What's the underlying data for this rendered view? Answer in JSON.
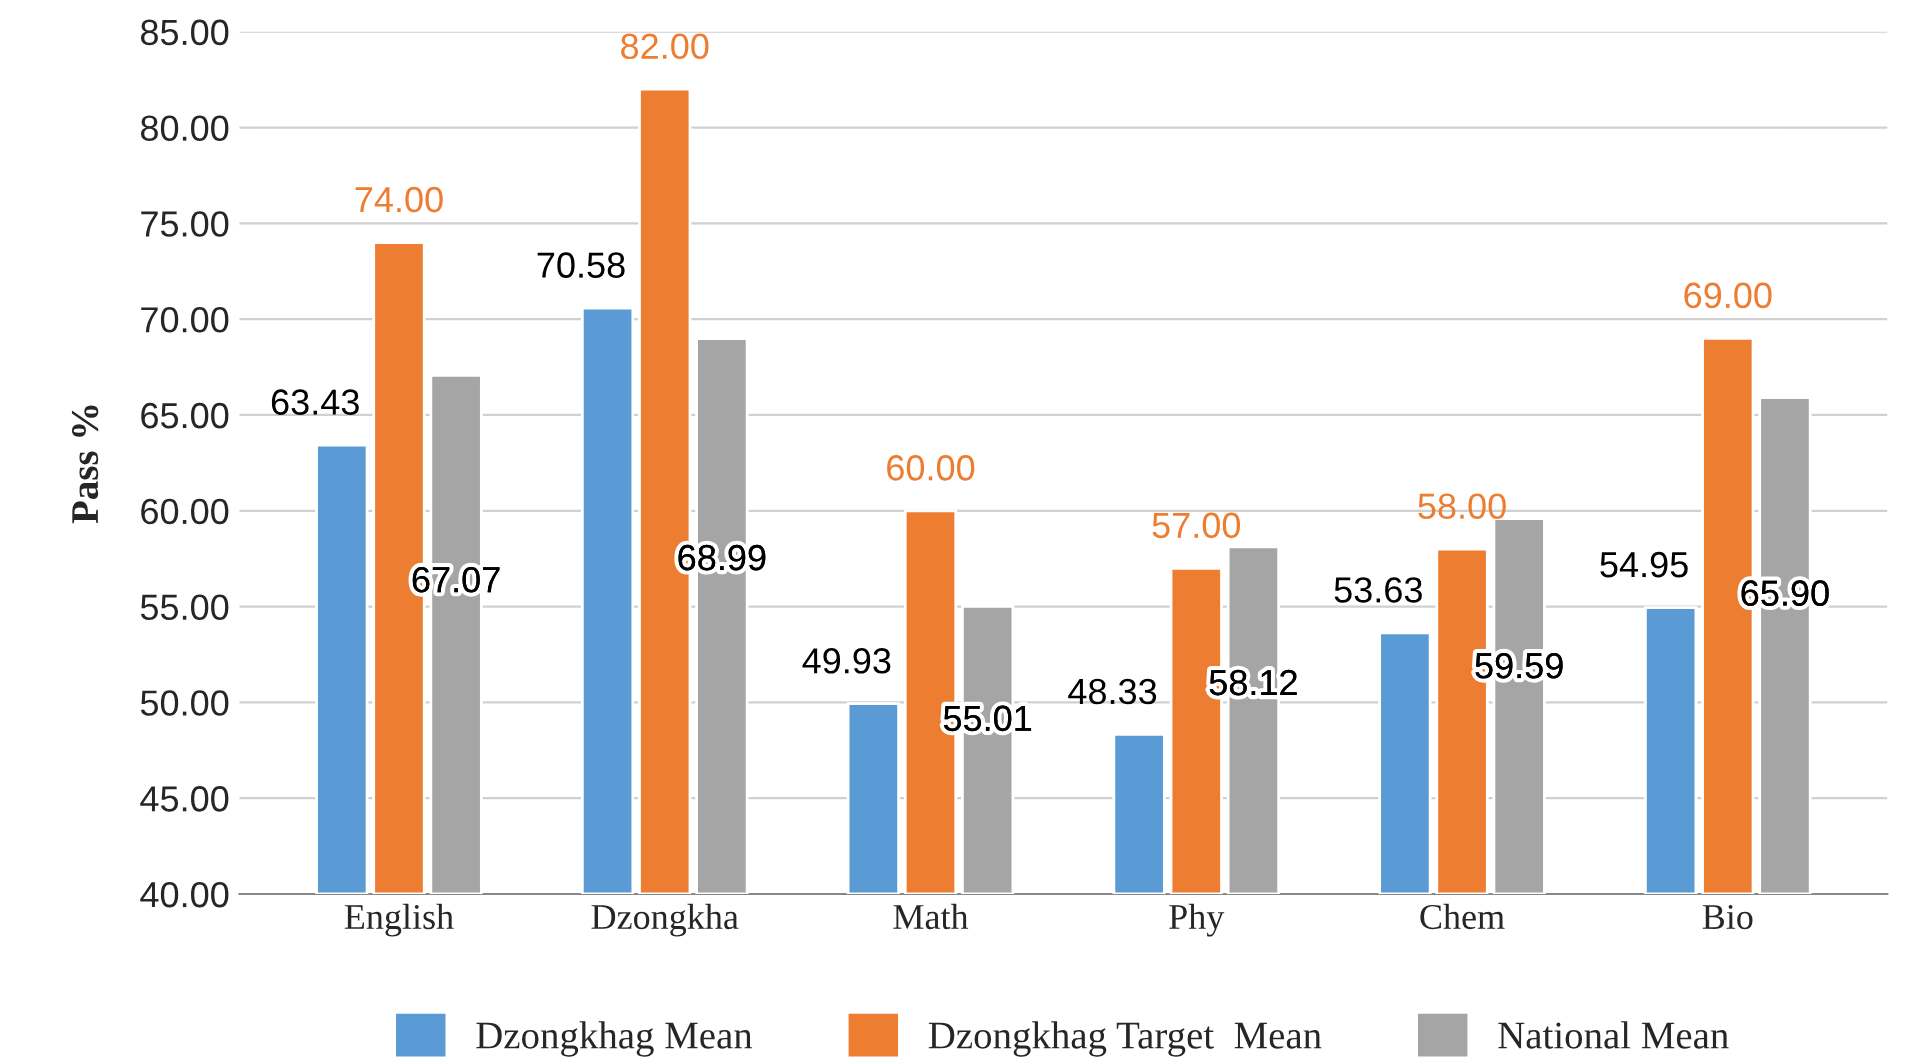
{
  "chart_data": {
    "type": "bar",
    "ylabel": "Pass %",
    "categories": [
      "English",
      "Dzongkha",
      "Math",
      "Phy",
      "Chem",
      "Bio"
    ],
    "series": [
      {
        "name": "Dzongkhag Mean",
        "color": "#5b9bd5",
        "values": [
          63.43,
          70.58,
          49.93,
          48.33,
          53.63,
          54.95
        ],
        "value_labels": [
          "63.43",
          "70.58",
          "49.93",
          "48.33",
          "53.63",
          "54.95"
        ]
      },
      {
        "name": "Dzongkhag Target  Mean",
        "color": "#ed7d31",
        "values": [
          74.0,
          82.0,
          60.0,
          57.0,
          58.0,
          69.0
        ],
        "value_labels": [
          "74.00",
          "82.00",
          "60.00",
          "57.00",
          "58.00",
          "69.00"
        ]
      },
      {
        "name": "National Mean",
        "color": "#a5a5a5",
        "values": [
          67.07,
          68.99,
          55.01,
          58.12,
          59.59,
          65.9
        ],
        "value_labels": [
          "67.07",
          "68.99",
          "55.01",
          "58.12",
          "59.59",
          "65.90"
        ]
      }
    ],
    "ylim": [
      40,
      85
    ],
    "yticks": [
      {
        "value": 40,
        "label": "40.00"
      },
      {
        "value": 45,
        "label": "45.00"
      },
      {
        "value": 50,
        "label": "50.00"
      },
      {
        "value": 55,
        "label": "55.00"
      },
      {
        "value": 60,
        "label": "60.00"
      },
      {
        "value": 65,
        "label": "65.00"
      },
      {
        "value": 70,
        "label": "70.00"
      },
      {
        "value": 75,
        "label": "75.00"
      },
      {
        "value": 80,
        "label": "80.00"
      },
      {
        "value": 85,
        "label": "85.00"
      }
    ],
    "grid": "y",
    "legend": "bottom"
  }
}
